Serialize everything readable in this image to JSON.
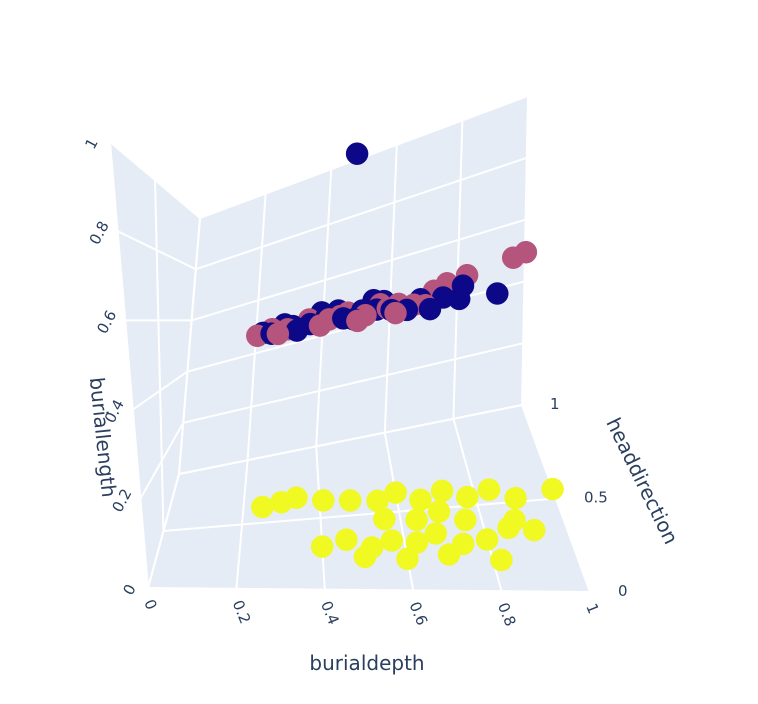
{
  "chart_data": {
    "type": "scatter",
    "projection": "3d",
    "axes": {
      "x": {
        "title": "burialdepth",
        "ticks": [
          "0",
          "0.2",
          "0.4",
          "0.6",
          "0.8",
          "1"
        ],
        "range": [
          0,
          1
        ]
      },
      "y": {
        "title": "headdirection",
        "ticks": [
          "0",
          "0.5",
          "1"
        ],
        "range": [
          0,
          1
        ]
      },
      "z": {
        "title": "buriallength",
        "ticks": [
          "0",
          "0.2",
          "0.4",
          "0.6",
          "0.8",
          "1"
        ],
        "range": [
          0,
          1
        ]
      }
    },
    "grid": true,
    "background": "#e5ecf6",
    "colors": {
      "navy": "#0d0887",
      "rose": "#b5547d",
      "yellow": "#f0f921"
    },
    "series": [
      {
        "color": "#0d0887",
        "points": [
          [
            0.49,
            0.9,
            1.0
          ],
          [
            0.28,
            0.62,
            0.5
          ],
          [
            0.33,
            0.72,
            0.5
          ],
          [
            0.38,
            0.68,
            0.5
          ],
          [
            0.42,
            0.78,
            0.5
          ],
          [
            0.47,
            0.66,
            0.5
          ],
          [
            0.52,
            0.74,
            0.5
          ],
          [
            0.56,
            0.7,
            0.5
          ],
          [
            0.6,
            0.64,
            0.5
          ],
          [
            0.3,
            0.82,
            0.5
          ],
          [
            0.45,
            0.85,
            0.5
          ],
          [
            0.68,
            0.72,
            0.5
          ],
          [
            0.74,
            0.68,
            0.5
          ],
          [
            0.8,
            0.78,
            0.5
          ],
          [
            0.35,
            0.58,
            0.5
          ],
          [
            0.5,
            0.6,
            0.5
          ],
          [
            0.58,
            0.82,
            0.5
          ],
          [
            0.64,
            0.6,
            0.5
          ],
          [
            0.7,
            0.55,
            0.5
          ],
          [
            0.78,
            0.62,
            0.5
          ],
          [
            0.88,
            0.6,
            0.5
          ],
          [
            0.25,
            0.7,
            0.5
          ],
          [
            0.4,
            0.9,
            0.5
          ],
          [
            0.55,
            0.88,
            0.5
          ]
        ]
      },
      {
        "color": "#b5547d",
        "points": [
          [
            0.27,
            0.76,
            0.5
          ],
          [
            0.32,
            0.66,
            0.5
          ],
          [
            0.37,
            0.8,
            0.5
          ],
          [
            0.43,
            0.7,
            0.5
          ],
          [
            0.48,
            0.76,
            0.5
          ],
          [
            0.53,
            0.64,
            0.5
          ],
          [
            0.57,
            0.78,
            0.5
          ],
          [
            0.62,
            0.72,
            0.5
          ],
          [
            0.66,
            0.66,
            0.5
          ],
          [
            0.72,
            0.8,
            0.5
          ],
          [
            0.76,
            0.86,
            0.5
          ],
          [
            0.82,
            0.9,
            0.5
          ],
          [
            1.0,
            0.98,
            0.5
          ],
          [
            0.96,
            0.96,
            0.5
          ],
          [
            0.3,
            0.58,
            0.5
          ],
          [
            0.41,
            0.6,
            0.5
          ],
          [
            0.51,
            0.56,
            0.5
          ],
          [
            0.61,
            0.58,
            0.5
          ],
          [
            0.69,
            0.62,
            0.5
          ],
          [
            0.24,
            0.64,
            0.5
          ],
          [
            0.46,
            0.72,
            0.5
          ],
          [
            0.59,
            0.68,
            0.5
          ]
        ]
      },
      {
        "color": "#f0f921",
        "points": [
          [
            0.25,
            0.62,
            0.0
          ],
          [
            0.3,
            0.64,
            0.0
          ],
          [
            0.34,
            0.66,
            0.0
          ],
          [
            0.41,
            0.62,
            0.0
          ],
          [
            0.48,
            0.6,
            0.0
          ],
          [
            0.55,
            0.58,
            0.0
          ],
          [
            0.6,
            0.62,
            0.0
          ],
          [
            0.66,
            0.56,
            0.0
          ],
          [
            0.72,
            0.6,
            0.0
          ],
          [
            0.78,
            0.55,
            0.0
          ],
          [
            0.84,
            0.58,
            0.0
          ],
          [
            0.9,
            0.52,
            0.0
          ],
          [
            1.0,
            0.55,
            0.0
          ],
          [
            0.4,
            0.3,
            0.0
          ],
          [
            0.46,
            0.34,
            0.0
          ],
          [
            0.52,
            0.28,
            0.0
          ],
          [
            0.57,
            0.32,
            0.0
          ],
          [
            0.63,
            0.3,
            0.0
          ],
          [
            0.68,
            0.35,
            0.0
          ],
          [
            0.74,
            0.28,
            0.0
          ],
          [
            0.8,
            0.3,
            0.0
          ],
          [
            0.86,
            0.36,
            0.0
          ],
          [
            0.92,
            0.34,
            0.0
          ],
          [
            0.5,
            0.22,
            0.0
          ],
          [
            0.6,
            0.2,
            0.0
          ],
          [
            0.7,
            0.22,
            0.0
          ],
          [
            0.82,
            0.18,
            0.0
          ],
          [
            0.56,
            0.46,
            0.0
          ],
          [
            0.64,
            0.44,
            0.0
          ],
          [
            0.76,
            0.42,
            0.0
          ],
          [
            0.88,
            0.4,
            0.0
          ],
          [
            0.7,
            0.48,
            0.0
          ]
        ]
      }
    ]
  }
}
